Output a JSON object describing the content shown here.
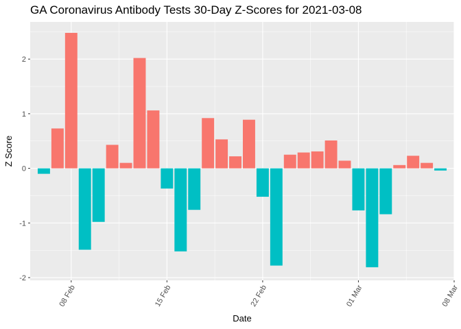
{
  "chart_data": {
    "type": "bar",
    "title": "GA Coronavirus Antibody Tests 30-Day Z-Scores for 2021-03-08",
    "xlabel": "Date",
    "ylabel": "Z Score",
    "x": [
      "2021-02-06",
      "2021-02-07",
      "2021-02-08",
      "2021-02-09",
      "2021-02-10",
      "2021-02-11",
      "2021-02-12",
      "2021-02-13",
      "2021-02-14",
      "2021-02-15",
      "2021-02-16",
      "2021-02-17",
      "2021-02-18",
      "2021-02-19",
      "2021-02-20",
      "2021-02-21",
      "2021-02-22",
      "2021-02-23",
      "2021-02-24",
      "2021-02-25",
      "2021-02-26",
      "2021-02-27",
      "2021-02-28",
      "2021-03-01",
      "2021-03-02",
      "2021-03-03",
      "2021-03-04",
      "2021-03-05",
      "2021-03-06",
      "2021-03-07"
    ],
    "values": [
      -0.1,
      0.73,
      2.48,
      -1.49,
      -0.98,
      0.43,
      0.1,
      2.02,
      1.06,
      -0.37,
      -1.52,
      -0.76,
      0.92,
      0.53,
      0.22,
      0.89,
      -0.52,
      -1.78,
      0.25,
      0.29,
      0.31,
      0.51,
      0.14,
      -0.77,
      -1.81,
      -0.84,
      0.06,
      0.23,
      0.1,
      -0.04
    ],
    "xlim": [
      "2021-02-05",
      "2021-03-08"
    ],
    "ylim": [
      -2.05,
      2.68
    ],
    "xticks": [
      "2021-02-08",
      "2021-02-15",
      "2021-02-22",
      "2021-03-01",
      "2021-03-08"
    ],
    "xtick_labels": [
      "08 Feb",
      "15 Feb",
      "22 Feb",
      "01 Mar",
      "08 Mar"
    ],
    "yticks": [
      -2,
      -1,
      0,
      1,
      2
    ],
    "ytick_labels": [
      "-2",
      "-1",
      "0",
      "1",
      "2"
    ],
    "grid": true,
    "colors": {
      "positive": "#F8766D",
      "negative": "#00BFC4",
      "panel": "#EBEBEB",
      "grid_major": "#FFFFFF"
    }
  }
}
